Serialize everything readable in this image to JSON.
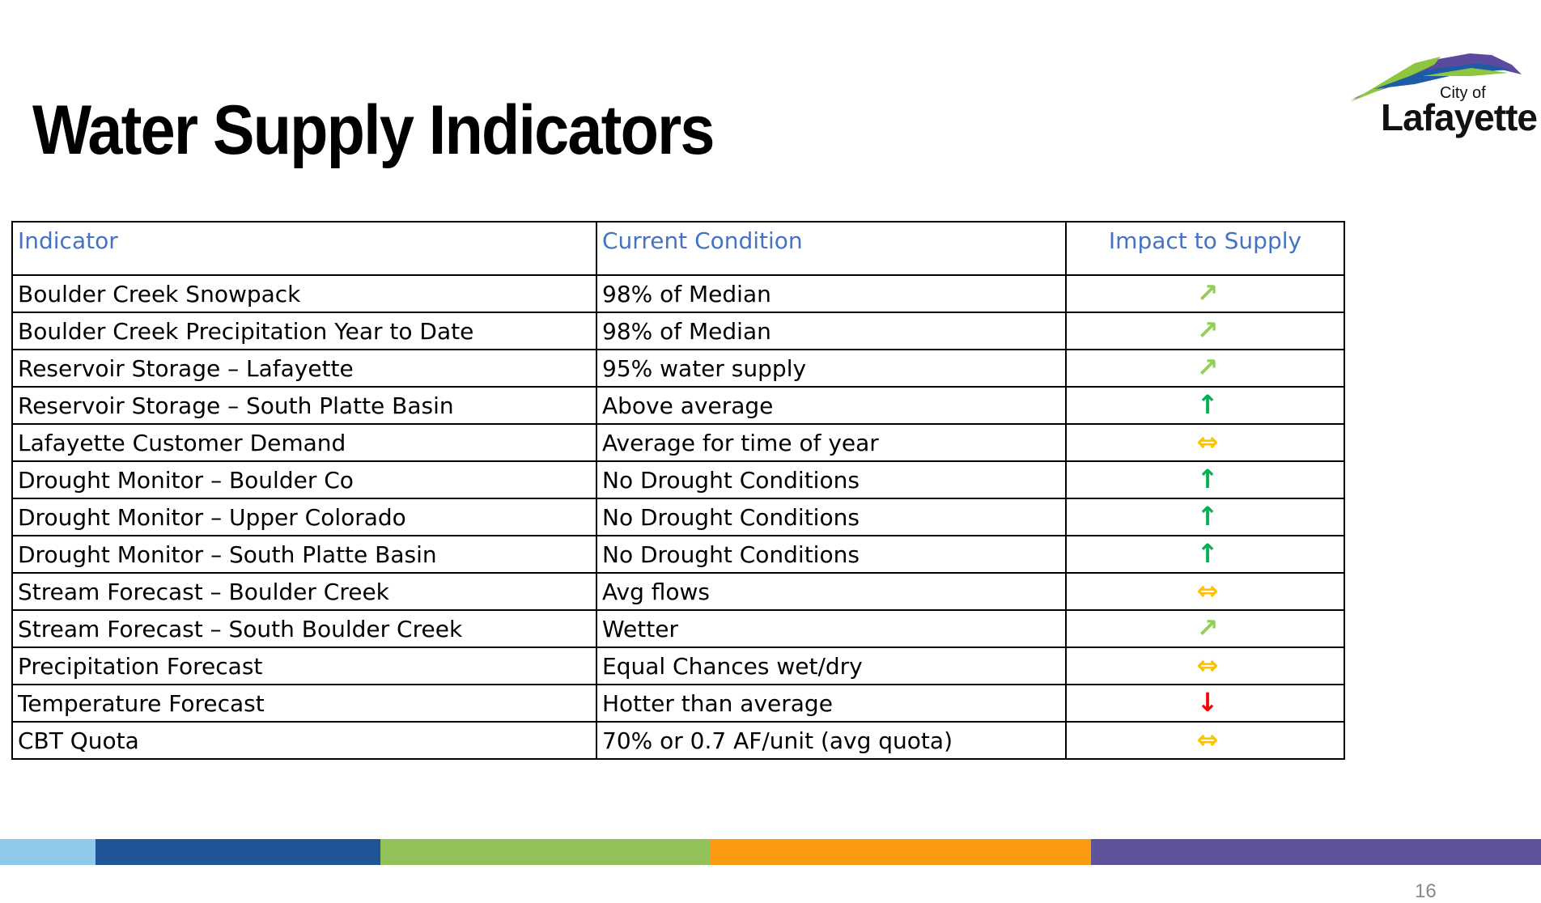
{
  "slide": {
    "title": "Water Supply Indicators",
    "page_number": "16"
  },
  "logo": {
    "city_of": "City of",
    "name": "Lafayette",
    "colors": {
      "green": "#8dc63f",
      "blue": "#1f5aa6",
      "purple": "#5b4a9e"
    }
  },
  "table": {
    "headers": {
      "indicator": "Indicator",
      "condition": "Current Condition",
      "impact": "Impact to Supply"
    },
    "rows": [
      {
        "indicator": "Boulder Creek Snowpack",
        "condition": "98% of Median",
        "impact": "up-right-arrow",
        "glyph": "↗",
        "kind": "diag"
      },
      {
        "indicator": "Boulder Creek Precipitation Year to Date",
        "condition": "98% of Median",
        "impact": "up-right-arrow",
        "glyph": "↗",
        "kind": "diag"
      },
      {
        "indicator": "Reservoir Storage – Lafayette",
        "condition": "95% water supply",
        "impact": "up-right-arrow",
        "glyph": "↗",
        "kind": "diag"
      },
      {
        "indicator": "Reservoir Storage – South Platte Basin",
        "condition": "Above average",
        "impact": "up-arrow",
        "glyph": "↑",
        "kind": "up"
      },
      {
        "indicator": "Lafayette Customer Demand",
        "condition": "Average for time of year",
        "impact": "left-right-arrow",
        "glyph": "⇔",
        "kind": "side"
      },
      {
        "indicator": "Drought Monitor – Boulder Co",
        "condition": "No Drought Conditions",
        "impact": "up-arrow",
        "glyph": "↑",
        "kind": "up"
      },
      {
        "indicator": "Drought Monitor – Upper Colorado",
        "condition": "No Drought Conditions",
        "impact": "up-arrow",
        "glyph": "↑",
        "kind": "up"
      },
      {
        "indicator": "Drought Monitor – South Platte Basin",
        "condition": "No Drought Conditions",
        "impact": "up-arrow",
        "glyph": "↑",
        "kind": "up"
      },
      {
        "indicator": "Stream Forecast – Boulder Creek",
        "condition": "Avg flows",
        "impact": "left-right-arrow",
        "glyph": "⇔",
        "kind": "side"
      },
      {
        "indicator": "Stream Forecast – South Boulder Creek",
        "condition": "Wetter",
        "impact": "up-right-arrow",
        "glyph": "↗",
        "kind": "diag"
      },
      {
        "indicator": "Precipitation Forecast",
        "condition": "Equal Chances wet/dry",
        "impact": "left-right-arrow",
        "glyph": "⇔",
        "kind": "side"
      },
      {
        "indicator": "Temperature Forecast",
        "condition": "Hotter than average",
        "impact": "down-arrow",
        "glyph": "↓",
        "kind": "down"
      },
      {
        "indicator": "CBT Quota",
        "condition": "70% or 0.7 AF/unit (avg quota)",
        "impact": "left-right-arrow",
        "glyph": "⇔",
        "kind": "side"
      }
    ]
  },
  "footer_bar": [
    {
      "color": "#8ec9ea"
    },
    {
      "color": "#1f5597"
    },
    {
      "color": "#92c15a"
    },
    {
      "color": "#fb9b12"
    },
    {
      "color": "#5c5399"
    }
  ],
  "colors": {
    "header_text": "#4472c4",
    "arrow_up_right": "#92d050",
    "arrow_up": "#00b050",
    "arrow_side": "#ffc000",
    "arrow_down": "#ff0000"
  }
}
